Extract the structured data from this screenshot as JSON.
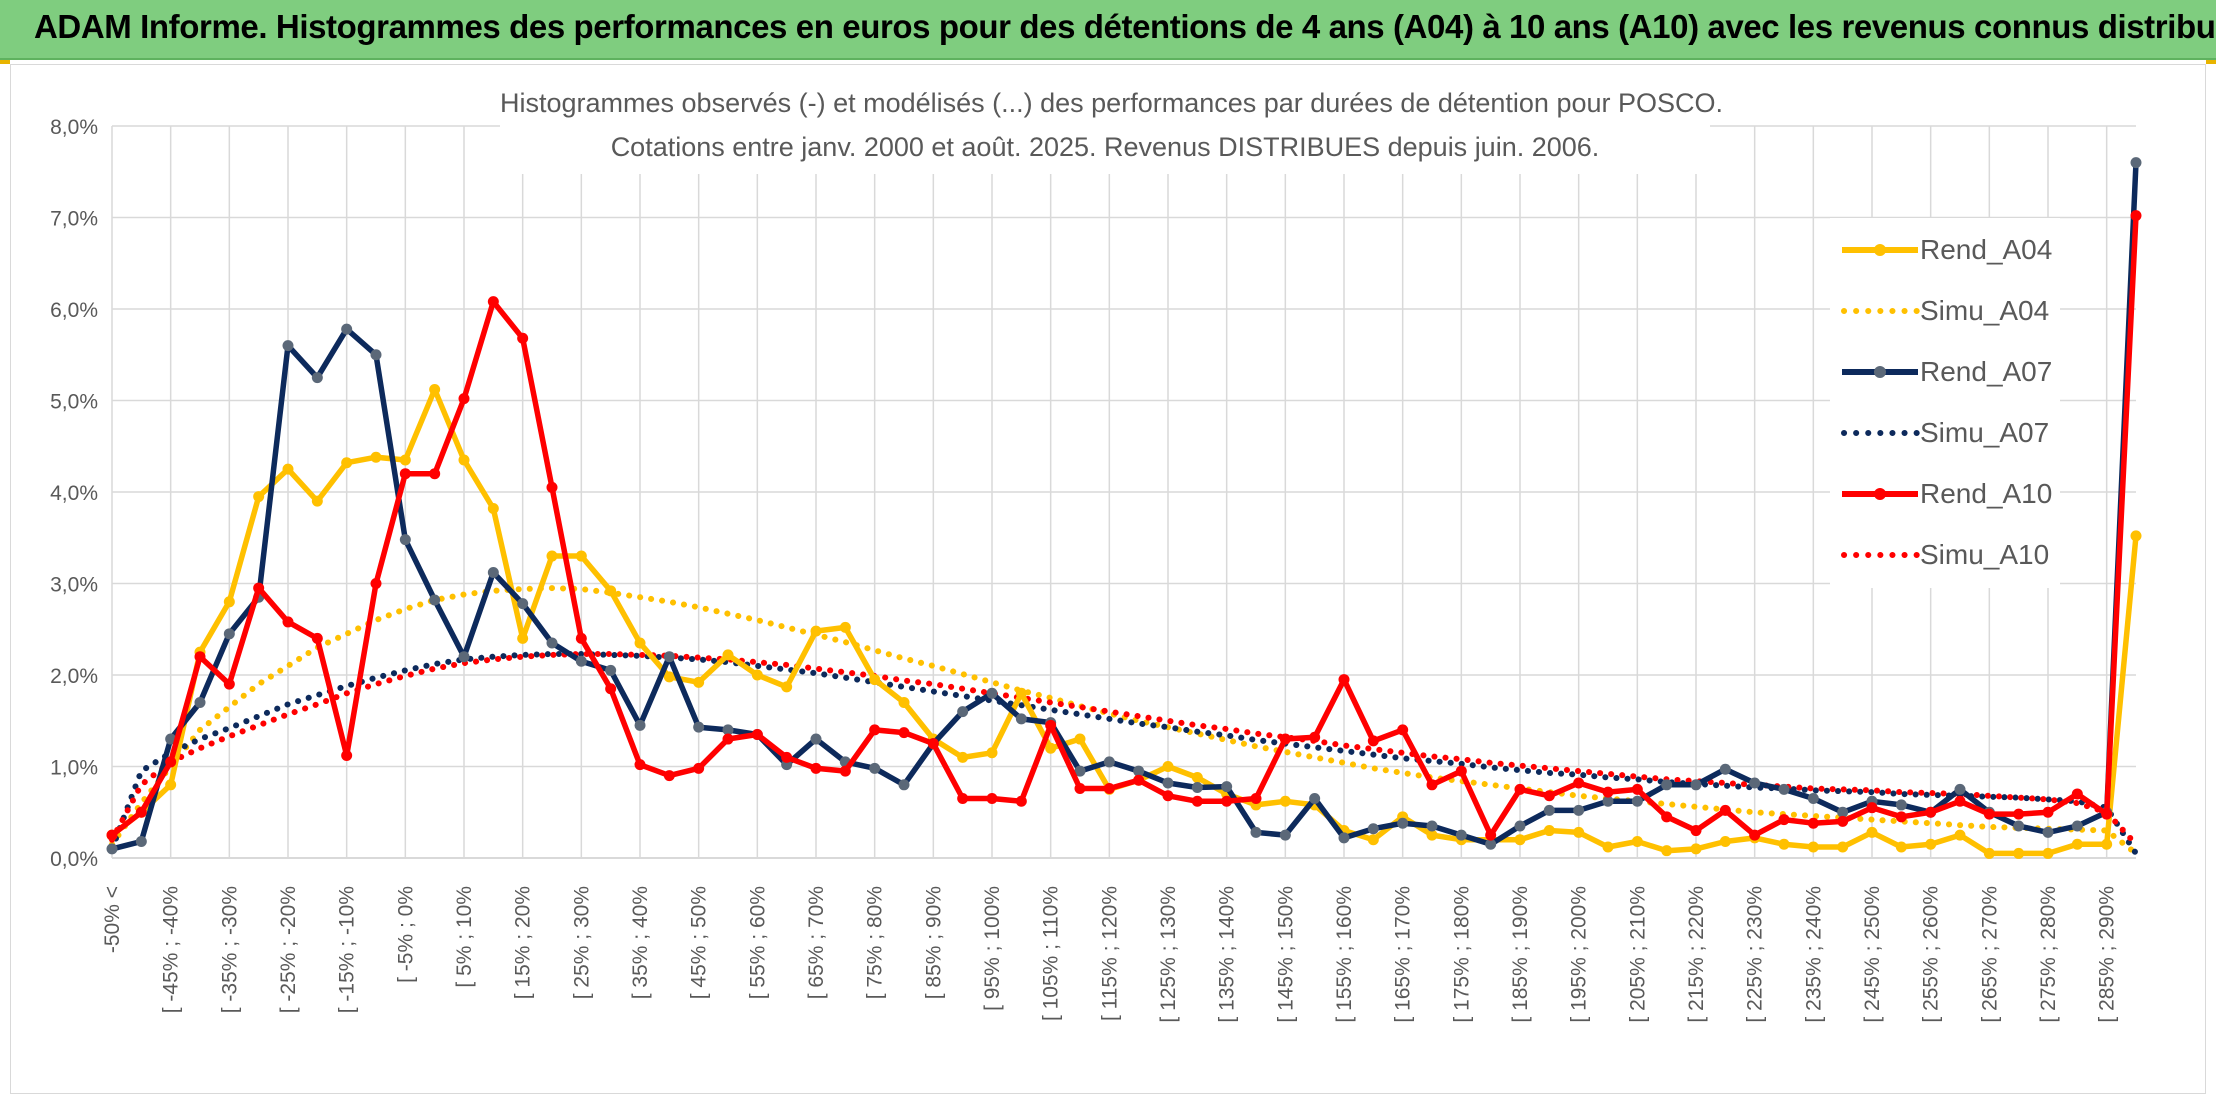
{
  "header": {
    "title": "ADAM Informe. Histogrammes des performances en euros pour des détentions de 4 ans (A04) à 10 ans (A10) avec les revenus connus distribués"
  },
  "colors": {
    "header_bg": "#7fcd7f",
    "A04": "#ffc000",
    "A07": "#0d2a5c",
    "A07_marker": "#5b6878",
    "A10": "#ff0000",
    "grid": "#d9d9d9",
    "text": "#595959"
  },
  "chart_data": {
    "type": "line",
    "title_lines": [
      "Histogrammes observés (-) et modélisés (...) des performances par durées de détention pour POSCO.",
      "Cotations entre janv. 2000 et août. 2025. Revenus DISTRIBUES depuis juin. 2006."
    ],
    "y_ticks": [
      "0,0%",
      "1,0%",
      "2,0%",
      "3,0%",
      "4,0%",
      "5,0%",
      "6,0%",
      "7,0%",
      "8,0%"
    ],
    "ylim": [
      0,
      8
    ],
    "y_unit": "%",
    "grid": true,
    "legend_position": "right",
    "x_tick_labels": [
      "-50% <",
      "[ -45% ; -40%",
      "[ -35% ; -30%",
      "[ -25% ; -20%",
      "[ -15% ; -10%",
      "[ -5% ; 0%",
      "[ 5% ; 10%",
      "[ 15% ; 20%",
      "[ 25% ; 30%",
      "[ 35% ; 40%",
      "[ 45% ; 50%",
      "[ 55% ; 60%",
      "[ 65% ; 70%",
      "[ 75% ; 80%",
      "[ 85% ; 90%",
      "[ 95% ; 100%",
      "[ 105% ; 110%",
      "[ 115% ; 120%",
      "[ 125% ; 130%",
      "[ 135% ; 140%",
      "[ 145% ; 150%",
      "[ 155% ; 160%",
      "[ 165% ; 170%",
      "[ 175% ; 180%",
      "[ 185% ; 190%",
      "[ 195% ; 200%",
      "[ 205% ; 210%",
      "[ 215% ; 220%",
      "[ 225% ; 230%",
      "[ 235% ; 240%",
      "[ 245% ; 250%",
      "[ 255% ; 260%",
      "[ 265% ; 270%",
      "[ 275% ; 280%",
      "[ 285% ; 290%"
    ],
    "n_categories": 70,
    "series": [
      {
        "name": "Rend_A04",
        "style": "solid",
        "color": "#ffc000",
        "marker": true,
        "values": [
          0.25,
          0.5,
          0.8,
          2.25,
          2.8,
          3.95,
          4.25,
          3.9,
          4.32,
          4.38,
          4.35,
          5.12,
          4.35,
          3.82,
          2.4,
          3.3,
          3.3,
          2.92,
          2.35,
          1.98,
          1.92,
          2.22,
          2.0,
          1.87,
          2.48,
          2.52,
          1.95,
          1.7,
          1.3,
          1.1,
          1.15,
          1.8,
          1.2,
          1.3,
          0.75,
          0.85,
          1.0,
          0.88,
          0.7,
          0.58,
          0.62,
          0.58,
          0.3,
          0.2,
          0.45,
          0.25,
          0.2,
          0.2,
          0.2,
          0.3,
          0.28,
          0.12,
          0.18,
          0.08,
          0.1,
          0.18,
          0.22,
          0.15,
          0.12,
          0.12,
          0.28,
          0.12,
          0.15,
          0.25,
          0.05,
          0.05,
          0.05,
          0.15,
          0.15,
          3.52
        ]
      },
      {
        "name": "Simu_A04",
        "style": "dotted",
        "color": "#ffc000",
        "marker": false,
        "values": [
          0.15,
          0.6,
          1.0,
          1.4,
          1.65,
          1.9,
          2.1,
          2.3,
          2.45,
          2.6,
          2.72,
          2.82,
          2.88,
          2.92,
          2.94,
          2.95,
          2.94,
          2.9,
          2.85,
          2.8,
          2.74,
          2.67,
          2.6,
          2.52,
          2.44,
          2.36,
          2.27,
          2.18,
          2.1,
          2.01,
          1.92,
          1.83,
          1.75,
          1.66,
          1.58,
          1.5,
          1.43,
          1.36,
          1.29,
          1.22,
          1.16,
          1.1,
          1.04,
          0.98,
          0.93,
          0.88,
          0.84,
          0.8,
          0.76,
          0.72,
          0.68,
          0.65,
          0.62,
          0.59,
          0.56,
          0.53,
          0.5,
          0.48,
          0.46,
          0.44,
          0.42,
          0.4,
          0.38,
          0.36,
          0.34,
          0.33,
          0.32,
          0.31,
          0.3,
          0.05
        ]
      },
      {
        "name": "Rend_A07",
        "style": "solid",
        "color": "#0d2a5c",
        "marker": true,
        "values": [
          0.1,
          0.18,
          1.3,
          1.7,
          2.45,
          2.85,
          5.6,
          5.25,
          5.78,
          5.5,
          3.48,
          2.82,
          2.2,
          3.12,
          2.78,
          2.35,
          2.15,
          2.05,
          1.45,
          2.2,
          1.43,
          1.4,
          1.35,
          1.02,
          1.3,
          1.05,
          0.98,
          0.8,
          1.25,
          1.6,
          1.8,
          1.52,
          1.48,
          0.95,
          1.05,
          0.95,
          0.82,
          0.77,
          0.78,
          0.28,
          0.25,
          0.65,
          0.22,
          0.32,
          0.38,
          0.35,
          0.25,
          0.15,
          0.35,
          0.52,
          0.52,
          0.62,
          0.62,
          0.8,
          0.8,
          0.97,
          0.82,
          0.75,
          0.65,
          0.5,
          0.62,
          0.58,
          0.5,
          0.75,
          0.5,
          0.35,
          0.28,
          0.35,
          0.5,
          7.6
        ]
      },
      {
        "name": "Simu_A07",
        "style": "dotted",
        "color": "#0d2a5c",
        "marker": false,
        "values": [
          0.1,
          0.95,
          1.15,
          1.3,
          1.42,
          1.55,
          1.68,
          1.78,
          1.88,
          1.97,
          2.05,
          2.12,
          2.17,
          2.2,
          2.22,
          2.23,
          2.23,
          2.22,
          2.21,
          2.19,
          2.17,
          2.14,
          2.1,
          2.06,
          2.02,
          1.97,
          1.92,
          1.87,
          1.82,
          1.77,
          1.72,
          1.67,
          1.62,
          1.57,
          1.52,
          1.47,
          1.43,
          1.38,
          1.34,
          1.29,
          1.25,
          1.21,
          1.17,
          1.13,
          1.09,
          1.06,
          1.03,
          0.99,
          0.96,
          0.93,
          0.91,
          0.88,
          0.86,
          0.83,
          0.81,
          0.79,
          0.77,
          0.76,
          0.74,
          0.73,
          0.72,
          0.7,
          0.69,
          0.68,
          0.67,
          0.66,
          0.64,
          0.62,
          0.55,
          0.05
        ]
      },
      {
        "name": "Rend_A10",
        "style": "solid",
        "color": "#ff0000",
        "marker": true,
        "values": [
          0.25,
          0.5,
          1.05,
          2.2,
          1.9,
          2.95,
          2.58,
          2.4,
          1.12,
          3.0,
          4.2,
          4.2,
          5.02,
          6.08,
          5.68,
          4.05,
          2.4,
          1.85,
          1.02,
          0.9,
          0.98,
          1.3,
          1.35,
          1.1,
          0.98,
          0.95,
          1.4,
          1.37,
          1.25,
          0.65,
          0.65,
          0.62,
          1.45,
          0.76,
          0.76,
          0.85,
          0.68,
          0.62,
          0.62,
          0.65,
          1.3,
          1.32,
          1.95,
          1.28,
          1.4,
          0.8,
          0.95,
          0.25,
          0.75,
          0.68,
          0.82,
          0.72,
          0.75,
          0.45,
          0.3,
          0.52,
          0.25,
          0.42,
          0.38,
          0.4,
          0.55,
          0.45,
          0.5,
          0.62,
          0.48,
          0.48,
          0.5,
          0.7,
          0.48,
          7.02
        ]
      },
      {
        "name": "Simu_A10",
        "style": "dotted",
        "color": "#ff0000",
        "marker": false,
        "values": [
          0.2,
          0.8,
          1.05,
          1.2,
          1.33,
          1.45,
          1.57,
          1.68,
          1.8,
          1.9,
          1.99,
          2.07,
          2.13,
          2.17,
          2.2,
          2.22,
          2.23,
          2.23,
          2.22,
          2.21,
          2.19,
          2.17,
          2.14,
          2.11,
          2.07,
          2.03,
          1.99,
          1.94,
          1.9,
          1.85,
          1.8,
          1.75,
          1.7,
          1.65,
          1.6,
          1.55,
          1.5,
          1.45,
          1.41,
          1.36,
          1.32,
          1.28,
          1.23,
          1.19,
          1.15,
          1.11,
          1.08,
          1.04,
          1.01,
          0.98,
          0.95,
          0.92,
          0.89,
          0.86,
          0.84,
          0.82,
          0.8,
          0.78,
          0.76,
          0.75,
          0.74,
          0.72,
          0.71,
          0.7,
          0.68,
          0.66,
          0.64,
          0.6,
          0.5,
          0.15
        ]
      }
    ]
  }
}
